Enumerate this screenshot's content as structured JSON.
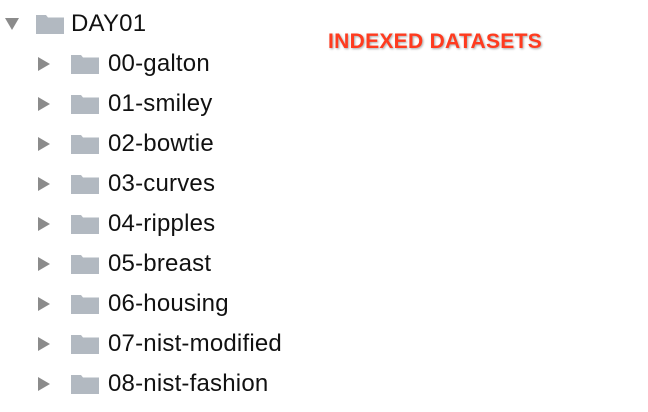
{
  "annotation": {
    "text": "INDEXED DATASETS",
    "color": "#ff3b1f"
  },
  "tree": {
    "root": {
      "label": "DAY01",
      "expanded": true,
      "icon": "folder-icon",
      "disclosure_icon": "triangle-down-icon"
    },
    "children": [
      {
        "label": "00-galton",
        "expanded": false
      },
      {
        "label": "01-smiley",
        "expanded": false
      },
      {
        "label": "02-bowtie",
        "expanded": false
      },
      {
        "label": "03-curves",
        "expanded": false
      },
      {
        "label": "04-ripples",
        "expanded": false
      },
      {
        "label": "05-breast",
        "expanded": false
      },
      {
        "label": "06-housing",
        "expanded": false
      },
      {
        "label": "07-nist-modified",
        "expanded": false
      },
      {
        "label": "08-nist-fashion",
        "expanded": false
      }
    ]
  },
  "colors": {
    "folder": "#b2b9c1",
    "disclosure": "#8b8b8b",
    "text": "#111111"
  }
}
